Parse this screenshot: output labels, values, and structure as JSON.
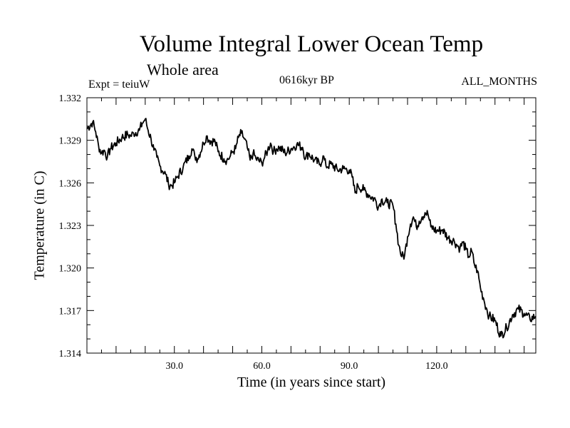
{
  "chart_data": {
    "type": "line",
    "title": "Volume Integral Lower Ocean Temp",
    "subtitle": "Whole area",
    "experiment": "Expt = teiuW",
    "period": "0616kyr BP",
    "months": "ALL_MONTHS",
    "xlabel": "Time (in years since start)",
    "ylabel": "Temperature (in C)",
    "xlim": [
      0,
      154
    ],
    "ylim": [
      1.314,
      1.332
    ],
    "xticks": [
      30,
      60,
      90,
      120
    ],
    "xtick_labels": [
      "30.0",
      "60.0",
      "90.0",
      "120.0"
    ],
    "yticks": [
      1.314,
      1.317,
      1.32,
      1.323,
      1.326,
      1.329,
      1.332
    ],
    "ytick_labels": [
      "1.314",
      "1.317",
      "1.320",
      "1.323",
      "1.326",
      "1.329",
      "1.332"
    ],
    "grid": false,
    "series": [
      {
        "name": "Volume Integral Lower Ocean Temp",
        "x": [
          0,
          2,
          3,
          4,
          5,
          6,
          7,
          8,
          10,
          12,
          14,
          15,
          16,
          18,
          19,
          20,
          21,
          22,
          23,
          24,
          25,
          27,
          28,
          29,
          30,
          31,
          33,
          35,
          36,
          37,
          38,
          40,
          41,
          42,
          44,
          45,
          47,
          48,
          49,
          50,
          51,
          52,
          53,
          54,
          55,
          56,
          57,
          58,
          60,
          61,
          62,
          63,
          64,
          65,
          66,
          68,
          70,
          72,
          74,
          75,
          76,
          78,
          80,
          81,
          82,
          84,
          86,
          88,
          90,
          91,
          92,
          93,
          95,
          97,
          99,
          100,
          101,
          103,
          105,
          106,
          107,
          108,
          109,
          110,
          111,
          112,
          113,
          114,
          115,
          116,
          117,
          118,
          120,
          122,
          124,
          126,
          127,
          128,
          129,
          130,
          131,
          132,
          133,
          134,
          135,
          136,
          137,
          138,
          140,
          142,
          144,
          146,
          148,
          150,
          152,
          154
        ],
        "values": [
          1.3298,
          1.3303,
          1.3296,
          1.3286,
          1.3281,
          1.3283,
          1.3278,
          1.3284,
          1.3288,
          1.3292,
          1.3294,
          1.3293,
          1.3295,
          1.3297,
          1.3302,
          1.3305,
          1.3297,
          1.3291,
          1.3283,
          1.3278,
          1.3272,
          1.3266,
          1.3259,
          1.3258,
          1.326,
          1.3264,
          1.3271,
          1.3279,
          1.3284,
          1.3279,
          1.3277,
          1.3288,
          1.3293,
          1.329,
          1.3289,
          1.3282,
          1.3277,
          1.3276,
          1.3278,
          1.3282,
          1.3284,
          1.3292,
          1.3295,
          1.3291,
          1.3285,
          1.3276,
          1.3281,
          1.3277,
          1.3274,
          1.3278,
          1.3283,
          1.3288,
          1.3282,
          1.3284,
          1.3285,
          1.3281,
          1.3284,
          1.3287,
          1.3285,
          1.3277,
          1.3281,
          1.3276,
          1.3273,
          1.3279,
          1.3272,
          1.3273,
          1.3269,
          1.327,
          1.3269,
          1.3264,
          1.3253,
          1.3258,
          1.3255,
          1.3251,
          1.3248,
          1.3243,
          1.3248,
          1.3246,
          1.3244,
          1.3231,
          1.3216,
          1.3208,
          1.3209,
          1.3222,
          1.3231,
          1.3236,
          1.3229,
          1.3233,
          1.3236,
          1.3239,
          1.3238,
          1.3229,
          1.3226,
          1.3227,
          1.3221,
          1.3219,
          1.3216,
          1.3214,
          1.3218,
          1.3213,
          1.3208,
          1.3212,
          1.3202,
          1.3198,
          1.3186,
          1.3179,
          1.3172,
          1.3166,
          1.3163,
          1.3152,
          1.3158,
          1.3167,
          1.3171,
          1.3168,
          1.3164,
          1.3166
        ]
      }
    ]
  }
}
